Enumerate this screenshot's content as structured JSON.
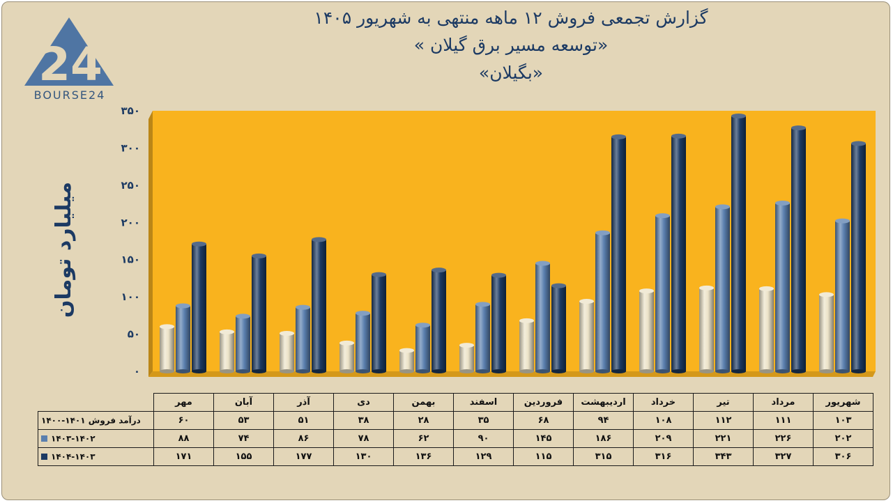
{
  "title": {
    "line1": "گزارش تجمعی فروش ۱۲ ماهه منتهی به شهریور ۱۴۰۵",
    "line2": "«توسعه مسیر برق گیلان »",
    "line3": "«بگیلان»"
  },
  "logo": {
    "mark": "24",
    "text": "BOURSE24",
    "icon": "bourse24-logo-icon",
    "color": "#4f75a3"
  },
  "colors": {
    "plot_bg": "#f9b31e",
    "series": [
      "#ece3c8",
      "#5a7fae",
      "#1c3a63"
    ],
    "frame": "#e3d6b8",
    "text": "#1c3a63"
  },
  "chart_data": {
    "type": "bar",
    "categories": [
      "مهر",
      "آبان",
      "آذر",
      "دی",
      "بهمن",
      "اسفند",
      "فروردین",
      "اردیبهشت",
      "خرداد",
      "تیر",
      "مرداد",
      "شهریور"
    ],
    "series": [
      {
        "name": "درآمد فروش ۱۴۰۱-۱۴۰۰",
        "values": [
          60,
          53,
          51,
          38,
          28,
          35,
          68,
          94,
          108,
          112,
          111,
          103
        ]
      },
      {
        "name": "۱۴۰۳-۱۴۰۲",
        "values": [
          88,
          74,
          86,
          78,
          62,
          90,
          145,
          186,
          209,
          221,
          226,
          202
        ]
      },
      {
        "name": "۱۴۰۴-۱۴۰۳",
        "values": [
          171,
          155,
          177,
          130,
          136,
          129,
          115,
          315,
          316,
          343,
          327,
          306
        ]
      }
    ],
    "yticks": [
      "۰",
      "۵۰",
      "۱۰۰",
      "۱۵۰",
      "۲۰۰",
      "۲۵۰",
      "۳۰۰",
      "۳۵۰"
    ],
    "ylim": [
      0,
      350
    ],
    "ylabel": "میلیارد تومان",
    "xlabel": "",
    "grid": false,
    "legend": "data-table-bottom"
  }
}
